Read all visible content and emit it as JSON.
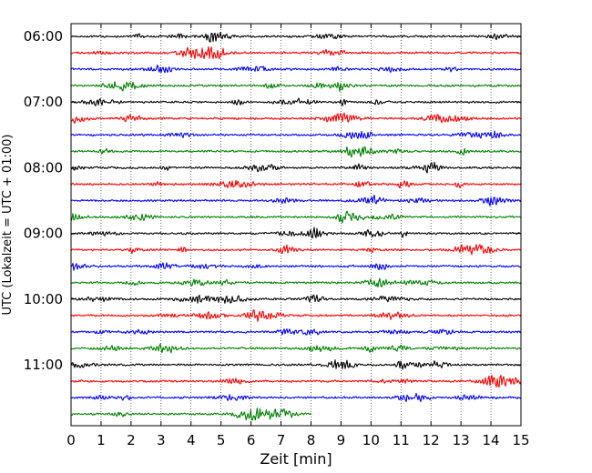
{
  "chart_data": {
    "type": "line",
    "title": "",
    "xlabel": "Zeit  [min]",
    "ylabel": "UTC (Lokalzeit = UTC + 01:00)",
    "xlim": [
      0,
      15
    ],
    "x_ticks": [
      0,
      1,
      2,
      3,
      4,
      5,
      6,
      7,
      8,
      9,
      10,
      11,
      12,
      13,
      14,
      15
    ],
    "x_tick_labels": [
      "0",
      "1",
      "2",
      "3",
      "4",
      "5",
      "6",
      "7",
      "8",
      "9",
      "10",
      "11",
      "12",
      "13",
      "14",
      "15"
    ],
    "y_tick_labels": [
      "06:00",
      "07:00",
      "08:00",
      "09:00",
      "10:00",
      "11:00"
    ],
    "vertical_grid": true,
    "grid_style": "dotted",
    "legend": "none",
    "trace_interval_minutes": 15,
    "first_trace_start": "06:00",
    "colors": [
      "#000000",
      "#ff0000",
      "#0000ff",
      "#008000"
    ],
    "traces": [
      {
        "start": "06:00",
        "duration_min": 15
      },
      {
        "start": "06:15",
        "duration_min": 15
      },
      {
        "start": "06:30",
        "duration_min": 15
      },
      {
        "start": "06:45",
        "duration_min": 15
      },
      {
        "start": "07:00",
        "duration_min": 15
      },
      {
        "start": "07:15",
        "duration_min": 15
      },
      {
        "start": "07:30",
        "duration_min": 15
      },
      {
        "start": "07:45",
        "duration_min": 15
      },
      {
        "start": "08:00",
        "duration_min": 15
      },
      {
        "start": "08:15",
        "duration_min": 15
      },
      {
        "start": "08:30",
        "duration_min": 15
      },
      {
        "start": "08:45",
        "duration_min": 15
      },
      {
        "start": "09:00",
        "duration_min": 15
      },
      {
        "start": "09:15",
        "duration_min": 15
      },
      {
        "start": "09:30",
        "duration_min": 15
      },
      {
        "start": "09:45",
        "duration_min": 15
      },
      {
        "start": "10:00",
        "duration_min": 15
      },
      {
        "start": "10:15",
        "duration_min": 15
      },
      {
        "start": "10:30",
        "duration_min": 15
      },
      {
        "start": "10:45",
        "duration_min": 15
      },
      {
        "start": "11:00",
        "duration_min": 15
      },
      {
        "start": "11:15",
        "duration_min": 15
      },
      {
        "start": "11:30",
        "duration_min": 15
      },
      {
        "start": "11:45",
        "duration_min": 8
      }
    ]
  }
}
